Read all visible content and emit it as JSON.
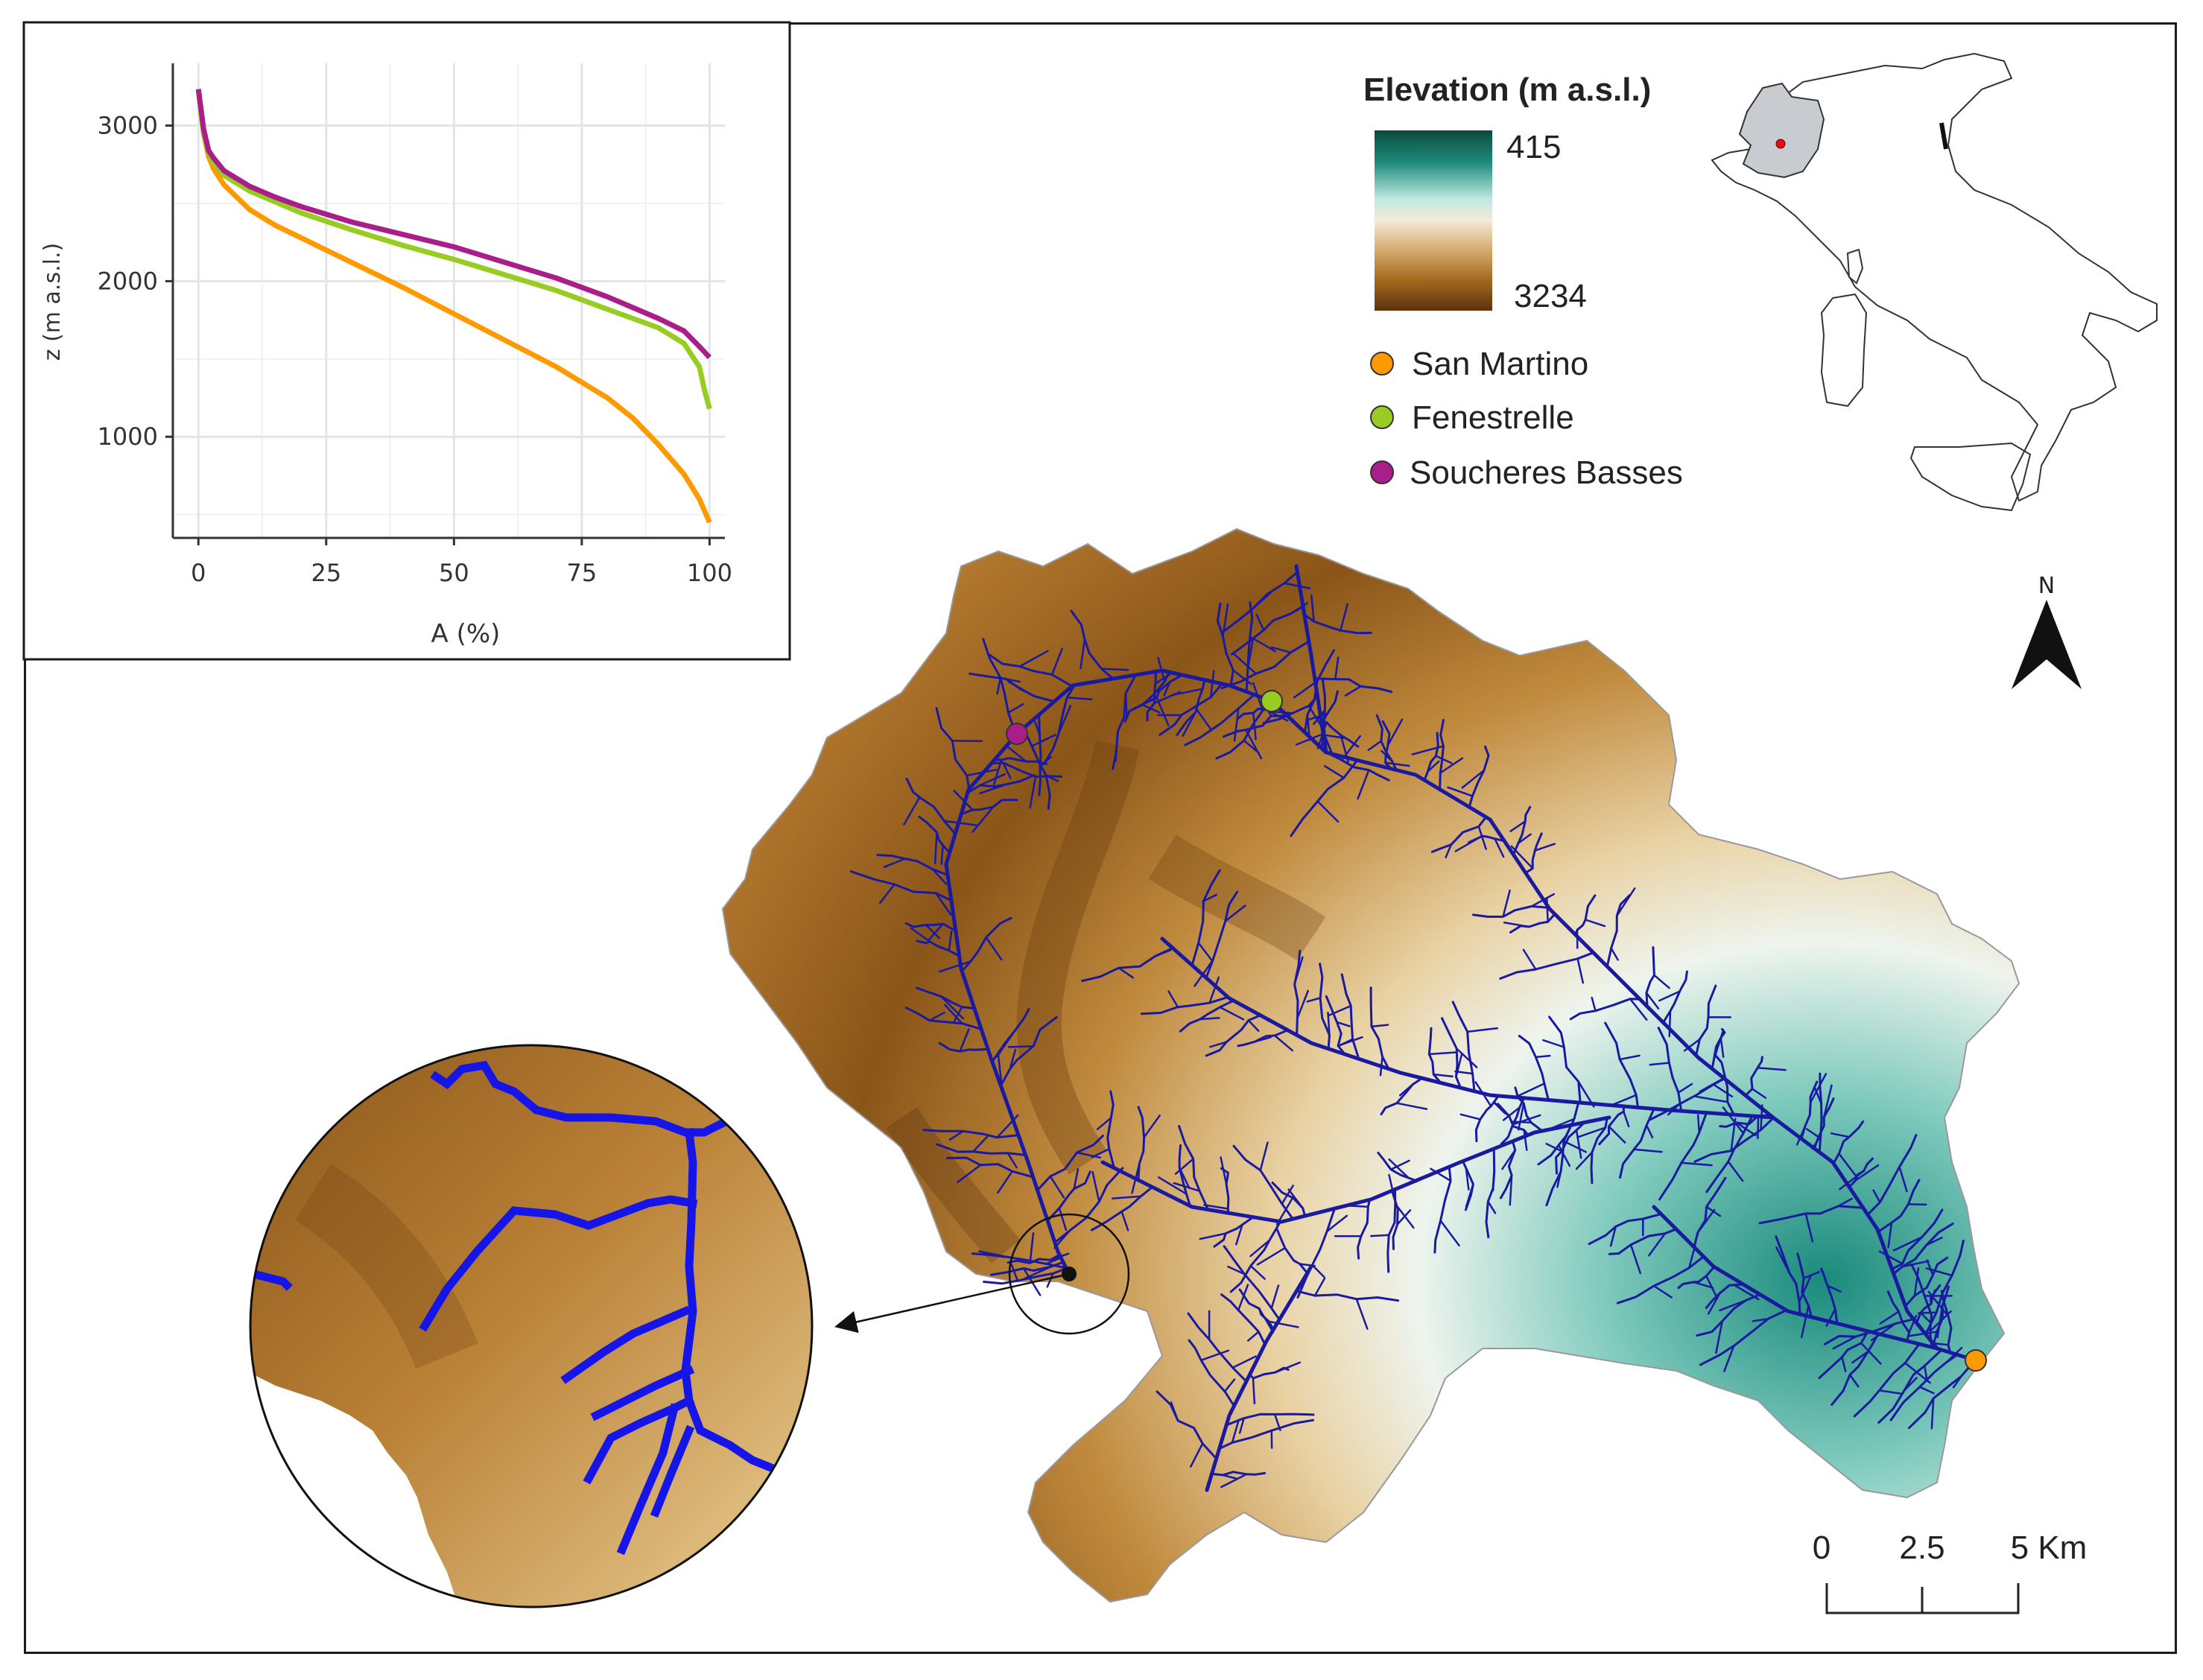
{
  "legend": {
    "title": "Elevation (m a.s.l.)",
    "colorbar_top": "415",
    "colorbar_bottom": "3234",
    "colors": [
      "#0b4a3e",
      "#1f8c7c",
      "#bfe9e2",
      "#f4ead8",
      "#d8b178",
      "#a86c22",
      "#5a330c"
    ],
    "stations": [
      {
        "name": "San Martino",
        "color": "#ff9900"
      },
      {
        "name": "Fenestrelle",
        "color": "#99cc22"
      },
      {
        "name": "Soucheres Basses",
        "color": "#aa1e8a"
      }
    ]
  },
  "north": {
    "label": "N"
  },
  "scale_bar": {
    "ticks": [
      "0",
      "2.5",
      "5 Km"
    ]
  },
  "colors": {
    "river": "#1a1aa0",
    "zoom_river": "#1515e8",
    "basin_outline": "#888888"
  },
  "chart_data": {
    "type": "line",
    "xlabel": "A (%)",
    "ylabel": "z (m a.s.l.)",
    "xlim": [
      -5,
      103
    ],
    "ylim": [
      350,
      3400
    ],
    "x_ticks": [
      "0",
      "25",
      "50",
      "75",
      "100"
    ],
    "x_tick_values": [
      0,
      25,
      50,
      75,
      100
    ],
    "y_ticks": [
      "1000",
      "2000",
      "3000"
    ],
    "y_tick_values": [
      1000,
      2000,
      3000
    ],
    "grid": true,
    "series": [
      {
        "name": "San Martino",
        "color": "#ff9900",
        "x": [
          0,
          1,
          2,
          3,
          5,
          10,
          15,
          20,
          25,
          30,
          40,
          50,
          60,
          70,
          80,
          85,
          90,
          95,
          98,
          100
        ],
        "y": [
          3234,
          2950,
          2800,
          2720,
          2620,
          2460,
          2360,
          2280,
          2200,
          2120,
          1960,
          1790,
          1620,
          1450,
          1250,
          1120,
          950,
          760,
          600,
          450
        ]
      },
      {
        "name": "Fenestrelle",
        "color": "#99cc22",
        "x": [
          0,
          1,
          2,
          3,
          5,
          10,
          15,
          20,
          30,
          40,
          50,
          60,
          70,
          80,
          85,
          90,
          95,
          98,
          99,
          100
        ],
        "y": [
          3234,
          2950,
          2820,
          2760,
          2680,
          2580,
          2510,
          2440,
          2330,
          2230,
          2140,
          2040,
          1940,
          1820,
          1760,
          1700,
          1600,
          1450,
          1300,
          1180
        ]
      },
      {
        "name": "Soucheres Basses",
        "color": "#aa1e8a",
        "x": [
          0,
          1,
          2,
          3,
          5,
          10,
          15,
          20,
          30,
          40,
          50,
          60,
          70,
          80,
          85,
          90,
          95,
          98,
          100
        ],
        "y": [
          3234,
          2980,
          2840,
          2790,
          2710,
          2610,
          2540,
          2480,
          2380,
          2300,
          2220,
          2120,
          2020,
          1900,
          1830,
          1760,
          1680,
          1580,
          1510
        ]
      }
    ]
  }
}
